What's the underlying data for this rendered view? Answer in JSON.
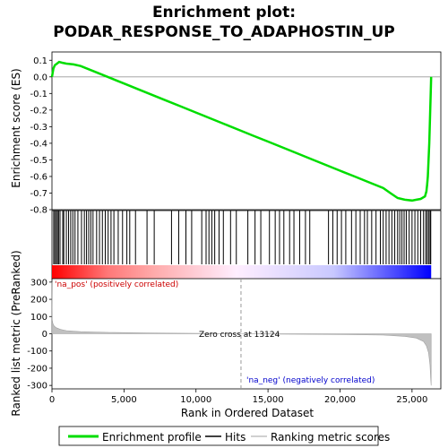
{
  "chart_data": {
    "type": "line",
    "title": "Enrichment plot:",
    "subtitle": "PODAR_RESPONSE_TO_ADAPHOSTIN_UP",
    "x_label": "Rank in Ordered Dataset",
    "x_ticks": [
      "0",
      "5,000",
      "10,000",
      "15,000",
      "20,000",
      "25,000"
    ],
    "xlim": [
      0,
      27000
    ],
    "es_panel": {
      "ylabel": "Enrichment score (ES)",
      "ylim": [
        -0.8,
        0.15
      ],
      "y_ticks": [
        "0.1",
        "0.0",
        "-0.1",
        "-0.2",
        "-0.3",
        "-0.4",
        "-0.5",
        "-0.6",
        "-0.7",
        "-0.8"
      ],
      "series": [
        {
          "name": "Enrichment profile",
          "color": "#00dd00",
          "x": [
            0,
            100,
            200,
            350,
            500,
            700,
            1000,
            1500,
            2000,
            3000,
            4000,
            5000,
            6000,
            7000,
            8000,
            9000,
            10000,
            11000,
            12000,
            13000,
            14000,
            15000,
            16000,
            17000,
            18000,
            19000,
            20000,
            21000,
            22000,
            23000,
            23500,
            24000,
            24500,
            25000,
            25300,
            25600,
            25900,
            26000,
            26050,
            26100,
            26150,
            26200,
            26250,
            26300,
            26330
          ],
          "y": [
            0.0,
            0.05,
            0.07,
            0.08,
            0.09,
            0.085,
            0.08,
            0.075,
            0.065,
            0.03,
            -0.005,
            -0.04,
            -0.075,
            -0.11,
            -0.145,
            -0.18,
            -0.215,
            -0.25,
            -0.285,
            -0.32,
            -0.355,
            -0.39,
            -0.425,
            -0.46,
            -0.495,
            -0.53,
            -0.565,
            -0.6,
            -0.635,
            -0.67,
            -0.7,
            -0.73,
            -0.74,
            -0.745,
            -0.74,
            -0.735,
            -0.72,
            -0.69,
            -0.65,
            -0.6,
            -0.5,
            -0.4,
            -0.25,
            -0.1,
            0.0
          ]
        }
      ]
    },
    "hits": [
      120,
      200,
      300,
      380,
      460,
      560,
      750,
      820,
      1000,
      1150,
      1300,
      1450,
      1600,
      1800,
      2050,
      2250,
      2400,
      2550,
      2700,
      2850,
      3100,
      3300,
      3500,
      3700,
      3900,
      4100,
      4300,
      4600,
      4900,
      5200,
      5400,
      5800,
      6600,
      7100,
      8300,
      8800,
      9300,
      9700,
      10400,
      10700,
      10900,
      11100,
      11300,
      11600,
      11900,
      12400,
      12800,
      13600,
      14100,
      14500,
      15100,
      15500,
      15800,
      16100,
      16500,
      16800,
      17200,
      17600,
      17900,
      19200,
      19500,
      19800,
      20100,
      20400,
      20800,
      21100,
      21400,
      21700,
      21900,
      22200,
      22500,
      22800,
      23000,
      23200,
      23400,
      23600,
      23800,
      24000,
      24150,
      24300,
      24450,
      24600,
      24800,
      25000,
      25200,
      25400,
      25600,
      25800,
      25950,
      26050,
      26150,
      26250,
      26300
    ],
    "ranked_panel": {
      "ylabel": "Ranked list metric (PreRanked)",
      "ylim": [
        -320,
        320
      ],
      "y_ticks": [
        "300",
        "200",
        "100",
        "0",
        "-100",
        "-200",
        "-300"
      ],
      "x": [
        0,
        20,
        60,
        150,
        300,
        600,
        1000,
        2000,
        4000,
        7000,
        10000,
        13124,
        16000,
        20000,
        23000,
        24500,
        25300,
        25800,
        26000,
        26150,
        26250,
        26300,
        26330
      ],
      "values": [
        300,
        80,
        60,
        45,
        35,
        25,
        18,
        12,
        8,
        4,
        2,
        0,
        -2,
        -4,
        -8,
        -15,
        -25,
        -45,
        -70,
        -110,
        -180,
        -260,
        -300
      ]
    },
    "zero_cross_label": "Zero cross at 13124",
    "zero_cross_x": 13124,
    "pos_label": "'na_pos' (positively correlated)",
    "neg_label": "'na_neg' (negatively correlated)",
    "colors": {
      "pos": "#ff0000",
      "mid": "#ffffff",
      "neg": "#0000ff",
      "profile": "#00dd00",
      "hits": "#000000",
      "metric": "#c0c0c0"
    },
    "legend": [
      {
        "label": "Enrichment profile",
        "color": "#00dd00"
      },
      {
        "label": "Hits",
        "color": "#000000"
      },
      {
        "label": "Ranking metric scores",
        "color": "#c0c0c0"
      }
    ]
  }
}
